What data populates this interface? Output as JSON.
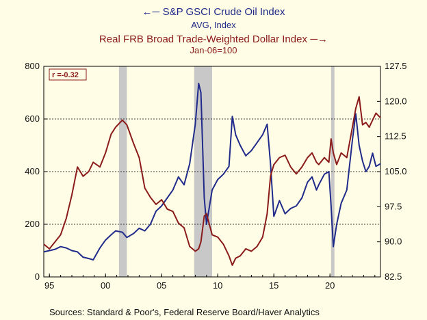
{
  "legend": {
    "oil_title": "S&P GSCI Crude Oil Index",
    "oil_unit": "AVG, Index",
    "dollar_title": "Real FRB Broad Trade-Weighted Dollar Index",
    "dollar_unit": "Jan-06=100"
  },
  "annotation": "r =-0.32",
  "source": "Sources:  Standard & Poor's, Federal Reserve Board/Haver Analytics",
  "colors": {
    "oil": "#1f2a8a",
    "dollar": "#8b1a1a",
    "recession": "#c8c8c8",
    "background": "#fffde5"
  },
  "chart_data": {
    "type": "line",
    "x_ticks": [
      "95",
      "00",
      "05",
      "10",
      "15",
      "20"
    ],
    "x_range": [
      1994.5,
      2024.5
    ],
    "left_axis": {
      "label": "S&P GSCI Crude Oil Index",
      "range": [
        0,
        800
      ],
      "ticks": [
        "0",
        "200",
        "400",
        "600",
        "800"
      ]
    },
    "right_axis": {
      "label": "Real FRB Broad Trade-Weighted Dollar Index",
      "range": [
        82.5,
        127.5
      ],
      "ticks": [
        "82.5",
        "90.0",
        "97.5",
        "105.0",
        "112.5",
        "120.0",
        "127.5"
      ]
    },
    "gridlines_left": [
      200,
      400,
      600
    ],
    "recessions": [
      [
        2001.2,
        2001.9
      ],
      [
        2007.9,
        2009.5
      ],
      [
        2020.1,
        2020.4
      ]
    ],
    "series": [
      {
        "name": "S&P GSCI Crude Oil Index",
        "axis": "left",
        "x": [
          1994.5,
          1995.0,
          1995.5,
          1996.0,
          1996.5,
          1997.0,
          1997.5,
          1998.0,
          1998.5,
          1998.9,
          1999.5,
          2000.0,
          2000.5,
          2000.9,
          2001.5,
          2001.9,
          2002.5,
          2003.0,
          2003.5,
          2004.0,
          2004.5,
          2005.0,
          2005.5,
          2006.0,
          2006.5,
          2007.0,
          2007.5,
          2008.0,
          2008.3,
          2008.5,
          2008.8,
          2009.0,
          2009.5,
          2010.0,
          2010.5,
          2011.0,
          2011.3,
          2011.6,
          2012.0,
          2012.5,
          2013.0,
          2013.5,
          2014.0,
          2014.4,
          2014.7,
          2015.0,
          2015.5,
          2016.0,
          2016.5,
          2017.0,
          2017.5,
          2018.0,
          2018.4,
          2018.8,
          2019.0,
          2019.5,
          2019.9,
          2020.1,
          2020.3,
          2020.6,
          2021.0,
          2021.5,
          2022.0,
          2022.3,
          2022.6,
          2022.9,
          2023.2,
          2023.5,
          2023.8,
          2024.1,
          2024.5
        ],
        "values": [
          95,
          100,
          105,
          115,
          110,
          100,
          95,
          75,
          70,
          65,
          110,
          140,
          160,
          175,
          170,
          150,
          165,
          185,
          175,
          200,
          250,
          270,
          300,
          330,
          380,
          350,
          430,
          580,
          735,
          700,
          300,
          200,
          330,
          370,
          390,
          420,
          610,
          540,
          500,
          460,
          480,
          510,
          540,
          580,
          430,
          230,
          290,
          240,
          260,
          270,
          300,
          360,
          380,
          330,
          350,
          390,
          400,
          270,
          115,
          200,
          280,
          330,
          520,
          620,
          500,
          440,
          400,
          420,
          470,
          420,
          430
        ]
      },
      {
        "name": "Real FRB Broad Trade-Weighted Dollar Index",
        "axis": "right",
        "x": [
          1994.5,
          1995.0,
          1995.5,
          1996.0,
          1996.5,
          1997.0,
          1997.5,
          1998.0,
          1998.5,
          1998.9,
          1999.5,
          2000.0,
          2000.5,
          2000.9,
          2001.5,
          2001.9,
          2002.5,
          2003.0,
          2003.5,
          2004.0,
          2004.5,
          2005.0,
          2005.5,
          2006.0,
          2006.5,
          2007.0,
          2007.5,
          2008.0,
          2008.3,
          2008.5,
          2008.8,
          2009.0,
          2009.5,
          2010.0,
          2010.5,
          2011.0,
          2011.3,
          2011.6,
          2012.0,
          2012.5,
          2013.0,
          2013.5,
          2014.0,
          2014.4,
          2014.7,
          2015.0,
          2015.5,
          2016.0,
          2016.5,
          2017.0,
          2017.5,
          2018.0,
          2018.4,
          2018.8,
          2019.0,
          2019.5,
          2019.9,
          2020.1,
          2020.3,
          2020.6,
          2021.0,
          2021.5,
          2022.0,
          2022.3,
          2022.6,
          2022.9,
          2023.2,
          2023.5,
          2023.8,
          2024.1,
          2024.5
        ],
        "values": [
          89.5,
          88.5,
          90.0,
          91.5,
          95.0,
          100.0,
          106.0,
          104.0,
          105.0,
          107.0,
          106.0,
          109.0,
          113.0,
          114.5,
          116.0,
          115.0,
          111.0,
          108.0,
          101.5,
          99.5,
          98.0,
          99.0,
          97.0,
          96.5,
          94.0,
          93.0,
          89.0,
          88.0,
          88.5,
          90.0,
          95.5,
          96.0,
          91.5,
          91.0,
          89.5,
          87.0,
          85.0,
          86.5,
          87.0,
          88.5,
          88.0,
          89.0,
          91.0,
          96.0,
          104.0,
          106.5,
          108.0,
          108.5,
          106.0,
          104.5,
          106.0,
          108.0,
          109.0,
          107.0,
          106.5,
          108.0,
          107.0,
          112.0,
          109.0,
          106.5,
          109.0,
          108.0,
          114.5,
          118.5,
          121.0,
          115.0,
          115.5,
          114.5,
          116.0,
          117.5,
          116.5
        ]
      }
    ]
  }
}
